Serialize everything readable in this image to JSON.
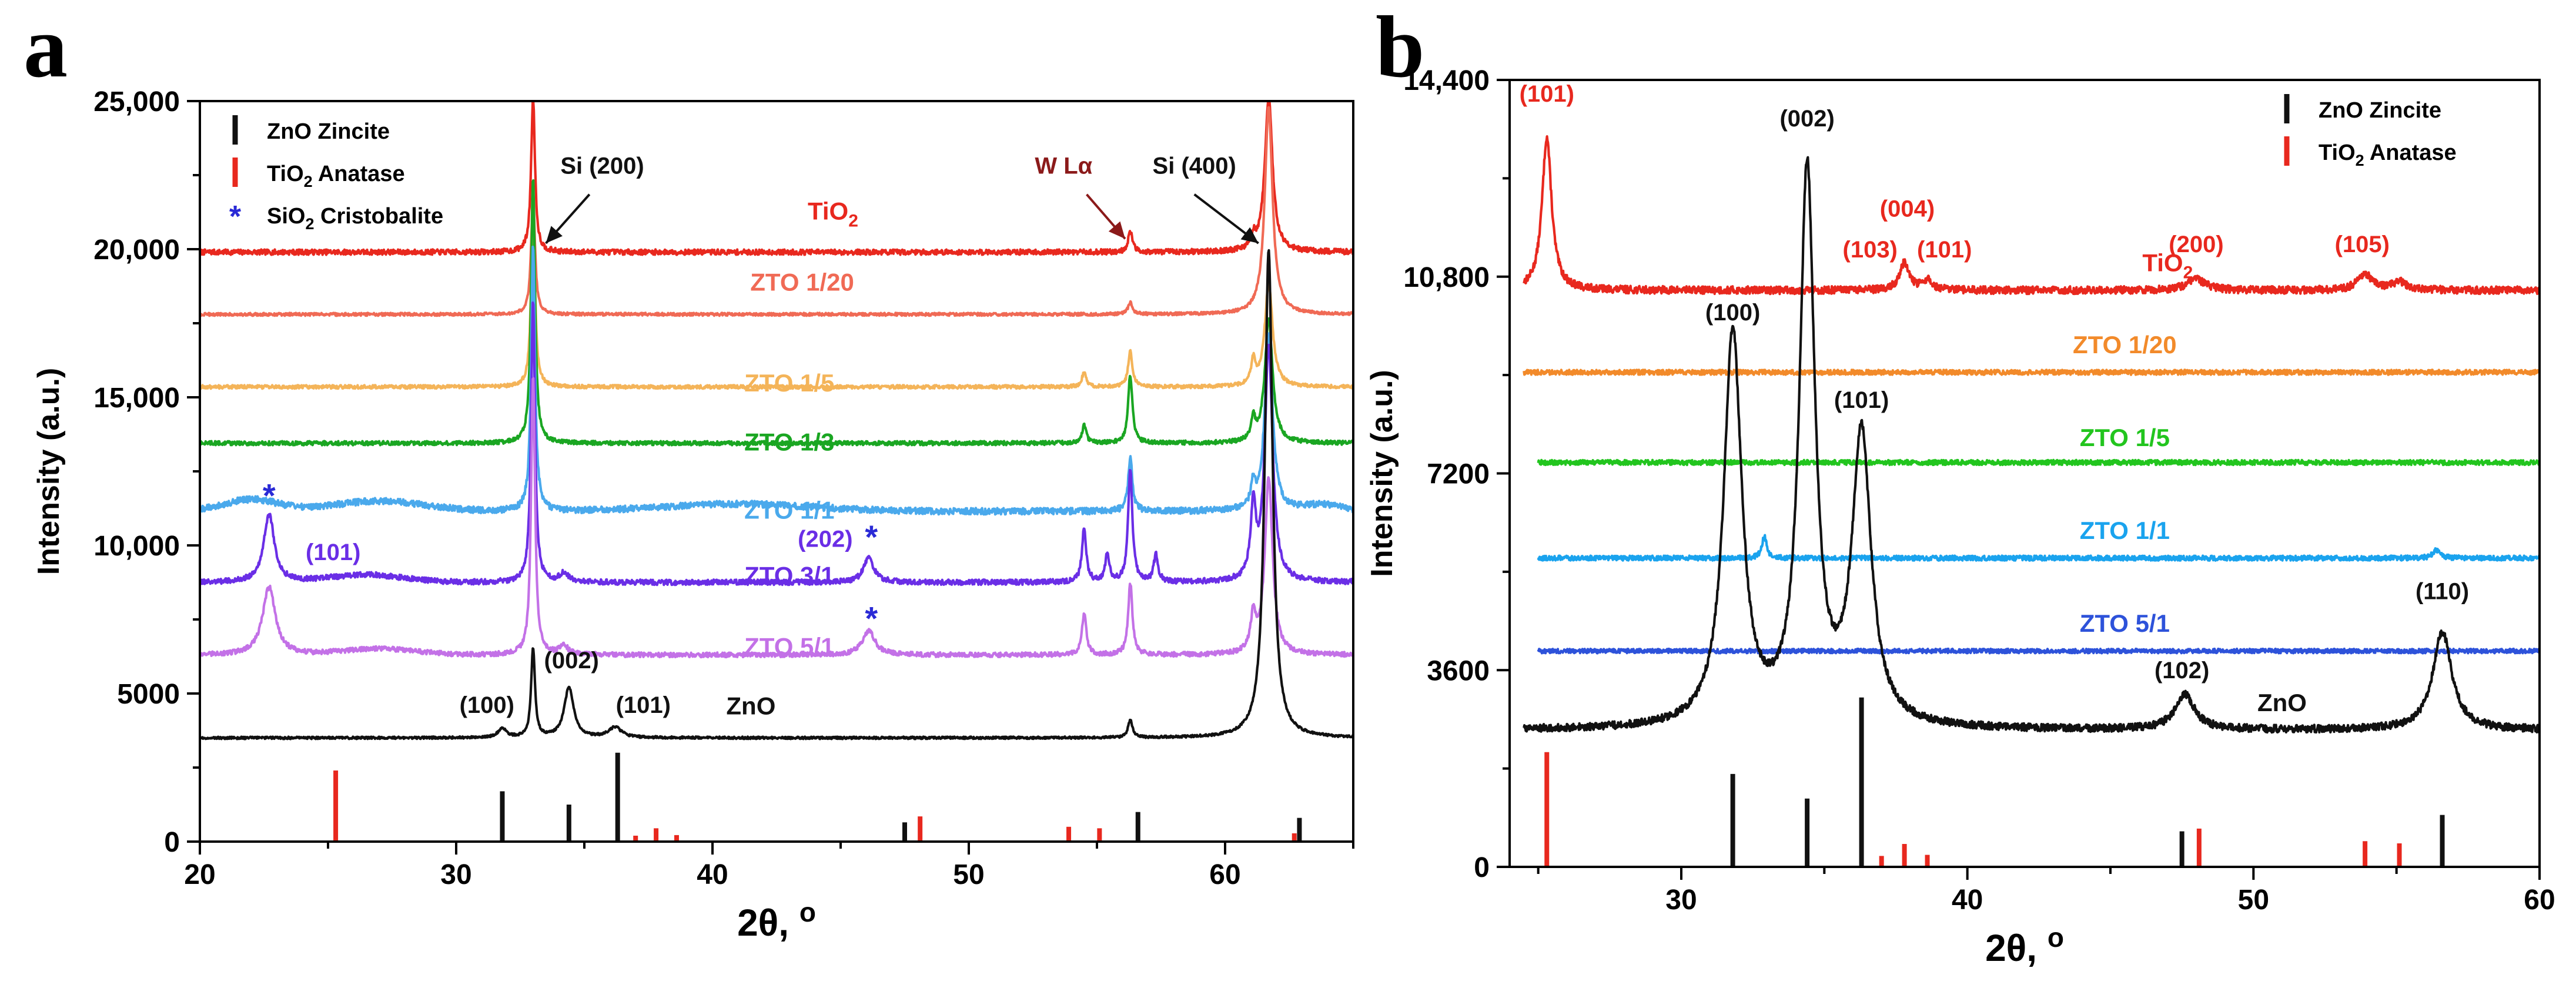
{
  "chart_data": [
    {
      "panel": "a",
      "type": "line",
      "xlabel_main": "2θ, ",
      "xlabel_unit": "o",
      "ylabel": "Intensity (a.u.)",
      "xlim": [
        20,
        65
      ],
      "ylim": [
        0,
        25000
      ],
      "x_ticks": [
        20,
        30,
        40,
        50,
        60
      ],
      "y_ticks": [
        0,
        5000,
        10000,
        15000,
        20000,
        25000
      ],
      "y_tick_labels": [
        "0",
        "5000",
        "10,000",
        "15,000",
        "20,000",
        "25,000"
      ],
      "legend": [
        {
          "marker": "bar",
          "color": "#111111",
          "text": "ZnO Zincite"
        },
        {
          "marker": "bar",
          "color": "#e8281e",
          "base": "TiO",
          "sub": "2",
          "rest": " Anatase"
        },
        {
          "marker": "*",
          "color": "#2a2ad6",
          "base": "SiO",
          "sub": "2",
          "rest": " Cristobalite"
        }
      ],
      "series": [
        {
          "name": "TiO2",
          "label_base": "TiO",
          "label_sub": "2",
          "color": "#e8281e",
          "baseline": 19900,
          "peaks": [
            [
              33.0,
              5200,
              0.09
            ],
            [
              56.3,
              700,
              0.1
            ],
            [
              61.1,
              400,
              0.1
            ],
            [
              61.7,
              5200,
              0.18
            ]
          ],
          "noise": 90,
          "label_x": 44.7
        },
        {
          "name": "ZTO 1/20",
          "color": "#f06a55",
          "baseline": 17800,
          "peaks": [
            [
              33.0,
              4000,
              0.09
            ],
            [
              56.3,
              400,
              0.1
            ],
            [
              61.7,
              7000,
              0.18
            ]
          ],
          "noise": 50,
          "label_x": 43.5
        },
        {
          "name": "ZTO 1/5",
          "color": "#f4b459",
          "baseline": 15350,
          "peaks": [
            [
              33.0,
              6000,
              0.09
            ],
            [
              54.5,
              500,
              0.1
            ],
            [
              56.3,
              1200,
              0.1
            ],
            [
              61.1,
              800,
              0.1
            ],
            [
              61.7,
              3500,
              0.18
            ]
          ],
          "noise": 60,
          "label_x": 43.0
        },
        {
          "name": "ZTO 1/3",
          "color": "#1aa622",
          "baseline": 13450,
          "peaks": [
            [
              33.0,
              9000,
              0.09
            ],
            [
              54.5,
              600,
              0.1
            ],
            [
              56.3,
              2300,
              0.1
            ],
            [
              61.1,
              700,
              0.1
            ],
            [
              61.7,
              4200,
              0.18
            ]
          ],
          "noise": 70,
          "label_x": 43.0
        },
        {
          "name": "ZTO 1/1",
          "color": "#4aa9ec",
          "baseline": 11150,
          "peaks": [
            [
              33.0,
              9000,
              0.09
            ],
            [
              56.3,
              1800,
              0.1
            ],
            [
              61.1,
              800,
              0.1
            ],
            [
              61.7,
              6000,
              0.18
            ]
          ],
          "humps": [
            [
              22.0,
              400,
              1.5
            ],
            [
              27.0,
              350,
              2.5
            ],
            [
              41.0,
              250,
              4.0
            ],
            [
              63.8,
              200,
              1.0
            ]
          ],
          "noise": 110,
          "label_x": 43.0
        },
        {
          "name": "ZTO 3/1",
          "color": "#6a2ee6",
          "baseline": 8750,
          "peaks": [
            [
              22.7,
              2300,
              0.25
            ],
            [
              33.0,
              9500,
              0.09
            ],
            [
              34.2,
              300,
              0.2
            ],
            [
              46.1,
              800,
              0.25
            ],
            [
              54.5,
              1800,
              0.1
            ],
            [
              55.4,
              900,
              0.1
            ],
            [
              56.3,
              3800,
              0.1
            ],
            [
              57.3,
              900,
              0.1
            ],
            [
              61.1,
              2400,
              0.12
            ],
            [
              61.7,
              8000,
              0.18
            ]
          ],
          "humps": [
            [
              26.5,
              250,
              2.0
            ]
          ],
          "noise": 90,
          "label_x": 43.0
        },
        {
          "name": "ZTO 5/1",
          "color": "#c371e7",
          "baseline": 6300,
          "peaks": [
            [
              22.7,
              2300,
              0.3
            ],
            [
              33.0,
              9500,
              0.09
            ],
            [
              34.2,
              300,
              0.2
            ],
            [
              46.1,
              800,
              0.3
            ],
            [
              54.5,
              1400,
              0.1
            ],
            [
              56.3,
              2400,
              0.1
            ],
            [
              61.1,
              1200,
              0.12
            ],
            [
              61.7,
              6000,
              0.18
            ]
          ],
          "humps": [
            [
              27.0,
              200,
              2.0
            ]
          ],
          "noise": 80,
          "label_x": 43.0
        },
        {
          "name": "ZnO",
          "color": "#111111",
          "baseline": 3500,
          "peaks": [
            [
              31.8,
              300,
              0.2
            ],
            [
              33.0,
              3000,
              0.09
            ],
            [
              34.4,
              1700,
              0.22
            ],
            [
              36.2,
              350,
              0.3
            ],
            [
              56.3,
              600,
              0.1
            ],
            [
              61.7,
              16500,
              0.18
            ]
          ],
          "noise": 40,
          "label_x": 41.5
        }
      ],
      "series_labels_y": {
        "TiO2": 21000,
        "ZTO 1/20": 18600,
        "ZTO 1/5": 15200,
        "ZTO 1/3": 13200,
        "ZTO 1/1": 10900,
        "ZTO 3/1": 8700,
        "ZTO 5/1": 6300,
        "ZnO": 4300
      },
      "reference_zincite": {
        "color": "#111111",
        "positions": [
          31.8,
          34.4,
          36.3,
          47.5,
          56.6,
          62.9
        ],
        "heights": [
          1700,
          1250,
          3000,
          650,
          1000,
          800
        ]
      },
      "reference_anatase": {
        "color": "#e8281e",
        "positions": [
          25.3,
          37.0,
          37.8,
          38.6,
          48.1,
          53.9,
          55.1,
          62.7
        ],
        "heights": [
          2400,
          200,
          450,
          220,
          850,
          500,
          450,
          280
        ]
      },
      "annotations": [
        {
          "text": "Si (200)",
          "x": 35.7,
          "y": 22550,
          "color": "#111111",
          "arrow_from": [
            35.2,
            21850
          ],
          "arrow_to": [
            33.5,
            20200
          ]
        },
        {
          "text": "Si (400)",
          "x": 58.8,
          "y": 22550,
          "color": "#111111",
          "arrow_from": [
            58.8,
            21850
          ],
          "arrow_to": [
            61.3,
            20200
          ]
        },
        {
          "text": "W Lα",
          "x": 53.7,
          "y": 22550,
          "color": "#8b1a1a",
          "arrow_from": [
            54.6,
            21850
          ],
          "arrow_to": [
            56.1,
            20350
          ]
        },
        {
          "text": "(101)",
          "x": 25.2,
          "y": 9500,
          "color": "#6a2ee6"
        },
        {
          "text": "(202)",
          "x": 44.4,
          "y": 9950,
          "color": "#6a2ee6"
        },
        {
          "text": "(100)",
          "x": 31.2,
          "y": 4350,
          "color": "#111111"
        },
        {
          "text": "(002)",
          "x": 34.5,
          "y": 5850,
          "color": "#111111"
        },
        {
          "text": "(101)",
          "x": 37.3,
          "y": 4350,
          "color": "#111111"
        }
      ],
      "stars": [
        {
          "x": 22.7,
          "y": 11700,
          "color": "#2a2ad6"
        },
        {
          "x": 46.2,
          "y": 10300,
          "color": "#2a2ad6"
        },
        {
          "x": 46.2,
          "y": 7550,
          "color": "#2a2ad6"
        }
      ]
    },
    {
      "panel": "b",
      "type": "line",
      "xlabel_main": "2θ, ",
      "xlabel_unit": "o",
      "ylabel": "Intensity (a.u.)",
      "xlim": [
        24,
        60
      ],
      "ylim": [
        0,
        14400
      ],
      "x_ticks": [
        30,
        40,
        50,
        60
      ],
      "y_ticks": [
        0,
        3600,
        7200,
        10800,
        14400
      ],
      "y_tick_labels": [
        "0",
        "3600",
        "7200",
        "10,800",
        "14,400"
      ],
      "legend": [
        {
          "marker": "bar",
          "color": "#111111",
          "text": "ZnO Zincite"
        },
        {
          "marker": "bar",
          "color": "#e8281e",
          "base": "TiO",
          "sub": "2",
          "rest": " Anatase"
        }
      ],
      "series": [
        {
          "name": "TiO2",
          "label_base": "TiO",
          "label_sub": "2",
          "color": "#e8281e",
          "baseline": 10550,
          "peaks": [
            [
              25.3,
              2800,
              0.2
            ],
            [
              37.8,
              500,
              0.2
            ],
            [
              38.6,
              180,
              0.2
            ],
            [
              48.0,
              200,
              0.4
            ],
            [
              53.9,
              300,
              0.3
            ],
            [
              55.1,
              150,
              0.3
            ]
          ],
          "noise": 70,
          "label_x": 47.0,
          "x_start": 24.5
        },
        {
          "name": "ZTO 1/20",
          "color": "#f28a2a",
          "baseline": 9050,
          "peaks": [],
          "noise": 45,
          "label_x": 45.5,
          "x_start": 24.5
        },
        {
          "name": "ZTO 1/5",
          "color": "#22c51e",
          "baseline": 7400,
          "peaks": [],
          "noise": 45,
          "label_x": 45.5,
          "x_start": 25.0
        },
        {
          "name": "ZTO 1/1",
          "color": "#1aa3ee",
          "baseline": 5650,
          "peaks": [
            [
              32.9,
              400,
              0.1
            ],
            [
              56.4,
              150,
              0.15
            ]
          ],
          "noise": 45,
          "label_x": 45.5,
          "x_start": 25.0
        },
        {
          "name": "ZTO 5/1",
          "color": "#2d52da",
          "baseline": 3950,
          "peaks": [],
          "noise": 40,
          "label_x": 45.5,
          "x_start": 25.0
        },
        {
          "name": "ZnO",
          "color": "#111111",
          "baseline": 2500,
          "peaks": [
            [
              31.8,
              7200,
              0.38
            ],
            [
              34.4,
              10100,
              0.32
            ],
            [
              36.3,
              5300,
              0.4
            ],
            [
              47.6,
              650,
              0.4
            ],
            [
              56.6,
              1800,
              0.4
            ]
          ],
          "noise": 70,
          "label_x": 51.0,
          "x_start": 24.5
        }
      ],
      "series_labels_y": {
        "TiO2": 10900,
        "ZTO 1/20": 9400,
        "ZTO 1/5": 7700,
        "ZTO 1/1": 6000,
        "ZTO 5/1": 4300,
        "ZnO": 2850
      },
      "reference_zincite": {
        "color": "#111111",
        "positions": [
          31.8,
          34.4,
          36.3,
          47.5,
          56.6
        ],
        "heights": [
          1700,
          1250,
          3100,
          650,
          950
        ]
      },
      "reference_anatase": {
        "color": "#e8281e",
        "positions": [
          25.3,
          37.0,
          37.8,
          38.6,
          48.1,
          53.9,
          55.1
        ],
        "heights": [
          2100,
          200,
          420,
          220,
          700,
          470,
          430
        ]
      },
      "annotations": [
        {
          "text": "(101)",
          "x": 25.3,
          "y": 14000,
          "color": "#e8281e"
        },
        {
          "text": "(002)",
          "x": 34.4,
          "y": 13550,
          "color": "#111111"
        },
        {
          "text": "(103)",
          "x": 36.6,
          "y": 11150,
          "color": "#e8281e"
        },
        {
          "text": "(004)",
          "x": 37.9,
          "y": 11900,
          "color": "#e8281e"
        },
        {
          "text": "(101)",
          "x": 39.2,
          "y": 11150,
          "color": "#e8281e"
        },
        {
          "text": "(200)",
          "x": 48.0,
          "y": 11250,
          "color": "#e8281e"
        },
        {
          "text": "(105)",
          "x": 53.8,
          "y": 11250,
          "color": "#e8281e"
        },
        {
          "text": "(100)",
          "x": 31.8,
          "y": 10000,
          "color": "#111111"
        },
        {
          "text": "(101)",
          "x": 36.3,
          "y": 8400,
          "color": "#111111"
        },
        {
          "text": "(102)",
          "x": 47.5,
          "y": 3450,
          "color": "#111111"
        },
        {
          "text": "(110)",
          "x": 56.6,
          "y": 4900,
          "color": "#111111"
        }
      ],
      "stars": []
    }
  ]
}
